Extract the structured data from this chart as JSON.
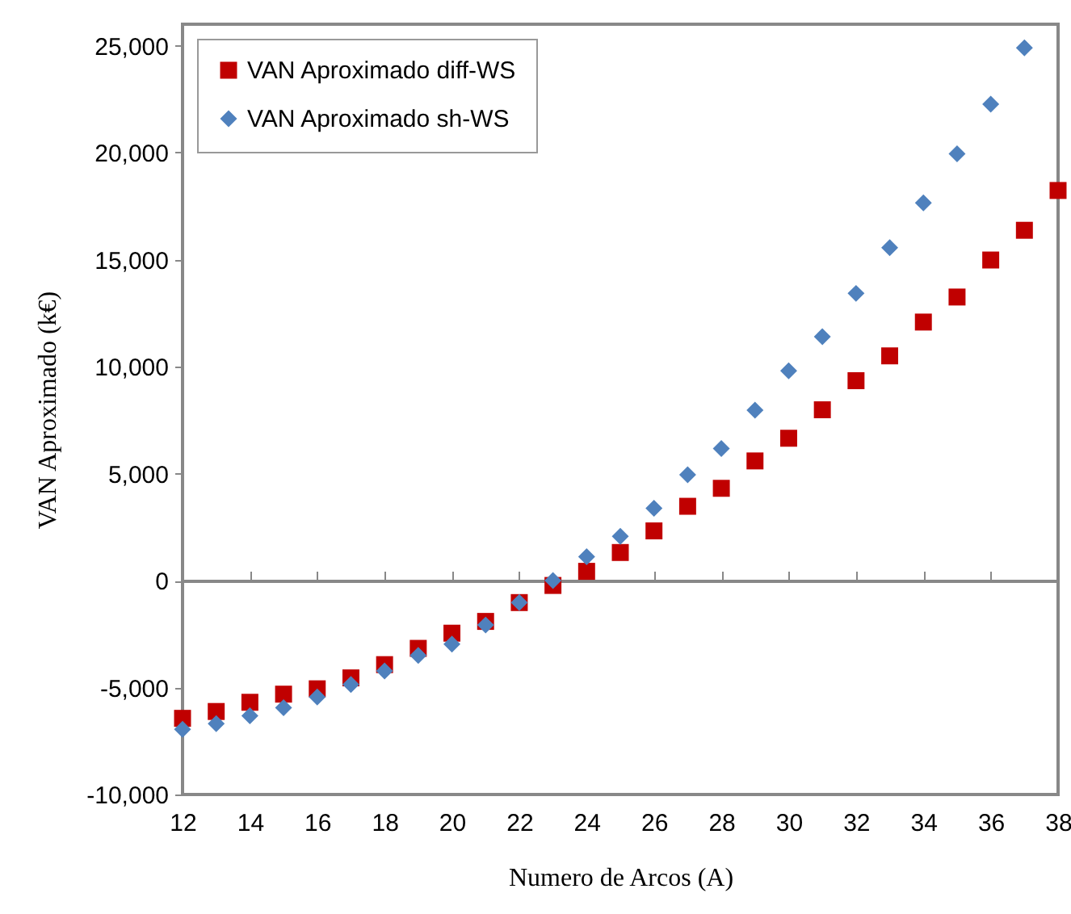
{
  "chart_data": {
    "type": "scatter",
    "xlabel": "Numero de Arcos (A)",
    "ylabel": "VAN Aproximado (k€)",
    "x": [
      12,
      13,
      14,
      15,
      16,
      17,
      18,
      19,
      20,
      21,
      22,
      23,
      24,
      25,
      26,
      27,
      28,
      29,
      30,
      31,
      32,
      33,
      34,
      35,
      36,
      37,
      38
    ],
    "series": [
      {
        "name": "VAN Aproximado diff-WS",
        "color": "#c00000",
        "marker": "square",
        "values": [
          -6440,
          -6120,
          -5690,
          -5310,
          -5060,
          -4550,
          -3930,
          -3170,
          -2460,
          -1910,
          -1030,
          -230,
          430,
          1310,
          2320,
          3470,
          4310,
          5590,
          6650,
          7980,
          9340,
          10500,
          12080,
          13250,
          14980,
          16370,
          18230
        ]
      },
      {
        "name": "VAN Aproximado sh-WS",
        "color": "#4f81bd",
        "marker": "diamond",
        "values": [
          -6950,
          -6690,
          -6320,
          -5940,
          -5440,
          -4860,
          -4230,
          -3500,
          -2970,
          -2080,
          -1030,
          0,
          1110,
          2070,
          3380,
          4940,
          6170,
          7960,
          9800,
          11400,
          13420,
          15560,
          17650,
          19940,
          22260,
          24900,
          null
        ]
      }
    ],
    "xlim": [
      12,
      38
    ],
    "xticks": [
      12,
      14,
      16,
      18,
      20,
      22,
      24,
      26,
      28,
      30,
      32,
      34,
      36,
      38
    ],
    "ylim": [
      -10000,
      26000
    ],
    "yticks": [
      {
        "value": -10000,
        "label": "-10,000"
      },
      {
        "value": -5000,
        "label": "-5,000"
      },
      0,
      {
        "value": 5000,
        "label": "5,000"
      },
      {
        "value": 10000,
        "label": "10,000"
      },
      {
        "value": 15000,
        "label": "15,000"
      },
      {
        "value": 20000,
        "label": "20,000"
      },
      {
        "value": 25000,
        "label": "25,000"
      }
    ],
    "legend": "top left"
  }
}
